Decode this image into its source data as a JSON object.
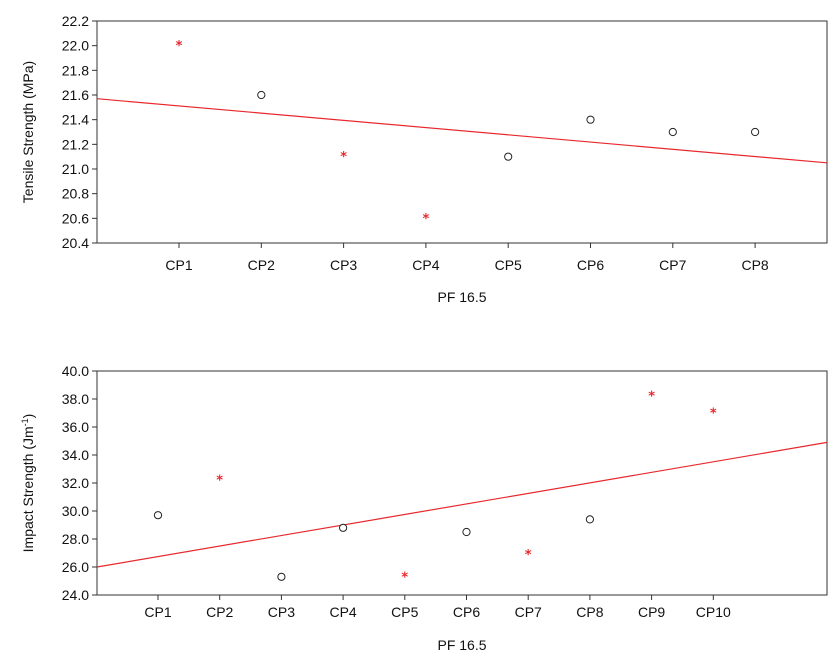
{
  "chart_data": [
    {
      "type": "scatter",
      "title": "",
      "xlabel": "PF 16.5",
      "ylabel": "Tensile Strength (MPa)",
      "ylim": [
        20.4,
        22.2
      ],
      "yticks": [
        "20.4",
        "20.6",
        "20.8",
        "21.0",
        "21.2",
        "21.4",
        "21.6",
        "21.8",
        "22.0",
        "22.2"
      ],
      "categories": [
        "CP1",
        "CP2",
        "CP3",
        "CP4",
        "CP5",
        "CP6",
        "CP7",
        "CP8"
      ],
      "points": [
        {
          "x": "CP1",
          "y": 22.0,
          "marker": "star"
        },
        {
          "x": "CP2",
          "y": 21.6,
          "marker": "circle"
        },
        {
          "x": "CP3",
          "y": 21.1,
          "marker": "star"
        },
        {
          "x": "CP4",
          "y": 20.6,
          "marker": "star"
        },
        {
          "x": "CP5",
          "y": 21.1,
          "marker": "circle"
        },
        {
          "x": "CP6",
          "y": 21.4,
          "marker": "circle"
        },
        {
          "x": "CP7",
          "y": 21.3,
          "marker": "circle"
        },
        {
          "x": "CP8",
          "y": 21.3,
          "marker": "circle"
        }
      ],
      "trendline": {
        "y_start": 21.57,
        "y_end": 21.05
      },
      "grid": false,
      "colors": {
        "star": "#e8282d",
        "circle": "#222222",
        "trendline": "#e8282d"
      }
    },
    {
      "type": "scatter",
      "title": "",
      "xlabel": "PF 16.5",
      "ylabel": "Impact Strength (Jm",
      "ylabel_sup": "-1",
      "ylabel_end": ")",
      "ylim": [
        24.0,
        40.0
      ],
      "yticks": [
        "24.0",
        "26.0",
        "28.0",
        "30.0",
        "32.0",
        "34.0",
        "36.0",
        "38.0",
        "40.0"
      ],
      "categories": [
        "CP1",
        "CP2",
        "CP3",
        "CP4",
        "CP5",
        "CP6",
        "CP7",
        "CP8",
        "CP9",
        "CP10"
      ],
      "points": [
        {
          "x": "CP1",
          "y": 29.7,
          "marker": "circle"
        },
        {
          "x": "CP2",
          "y": 32.2,
          "marker": "star"
        },
        {
          "x": "CP3",
          "y": 25.3,
          "marker": "circle"
        },
        {
          "x": "CP4",
          "y": 28.8,
          "marker": "circle"
        },
        {
          "x": "CP5",
          "y": 25.3,
          "marker": "star"
        },
        {
          "x": "CP6",
          "y": 28.5,
          "marker": "circle"
        },
        {
          "x": "CP7",
          "y": 26.9,
          "marker": "star"
        },
        {
          "x": "CP8",
          "y": 29.4,
          "marker": "circle"
        },
        {
          "x": "CP9",
          "y": 38.2,
          "marker": "star"
        },
        {
          "x": "CP10",
          "y": 37.0,
          "marker": "star"
        }
      ],
      "trendline": {
        "y_start": 26.0,
        "y_end": 34.9
      },
      "grid": false,
      "colors": {
        "star": "#e8282d",
        "circle": "#222222",
        "trendline": "#e8282d"
      }
    }
  ]
}
